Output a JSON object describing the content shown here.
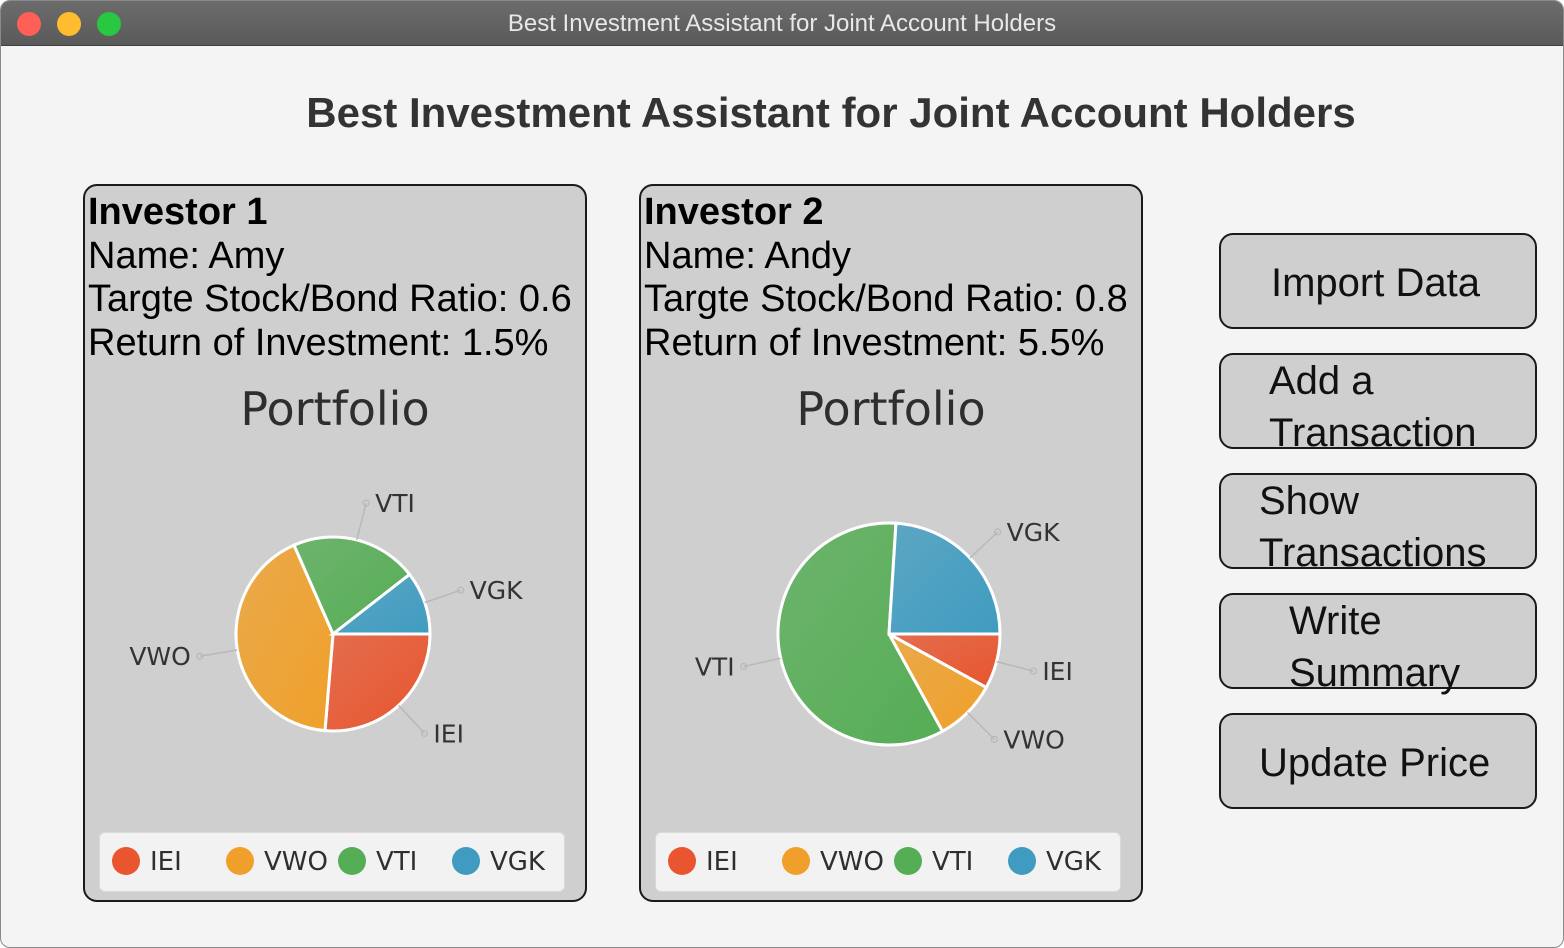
{
  "window": {
    "title": "Best Investment Assistant for Joint Account Holders"
  },
  "app": {
    "title": "Best Investment Assistant for Joint Account Holders"
  },
  "colors": {
    "IEI": "#e8552e",
    "VWO": "#f0a02a",
    "VTI": "#55ad55",
    "VGK": "#3f9cc0"
  },
  "investors": [
    {
      "heading": "Investor 1",
      "name": "Name: Amy",
      "ratio": "Targte Stock/Bond Ratio: 0.6",
      "roi": "Return of Investment: 1.5%",
      "chart_title": "Portfolio"
    },
    {
      "heading": "Investor 2",
      "name": "Name: Andy",
      "ratio": "Targte Stock/Bond Ratio: 0.8",
      "roi": "Return of Investment: 5.5%",
      "chart_title": "Portfolio"
    }
  ],
  "legend": [
    "IEI",
    "VWO",
    "VTI",
    "VGK"
  ],
  "buttons": {
    "import": [
      "Import Data"
    ],
    "add": [
      "Add a",
      "Transaction"
    ],
    "show": [
      "Show",
      "Transactions"
    ],
    "write": [
      "Write",
      "Summary"
    ],
    "update": [
      "Update Price"
    ]
  },
  "chart_data": [
    {
      "type": "pie",
      "title": "Portfolio",
      "categories": [
        "IEI",
        "VWO",
        "VTI",
        "VGK"
      ],
      "values": [
        25,
        40,
        20,
        10
      ],
      "legend": "bottom"
    },
    {
      "type": "pie",
      "title": "Portfolio",
      "categories": [
        "IEI",
        "VWO",
        "VTI",
        "VGK"
      ],
      "values": [
        8,
        9,
        59,
        24
      ],
      "legend": "bottom"
    }
  ]
}
